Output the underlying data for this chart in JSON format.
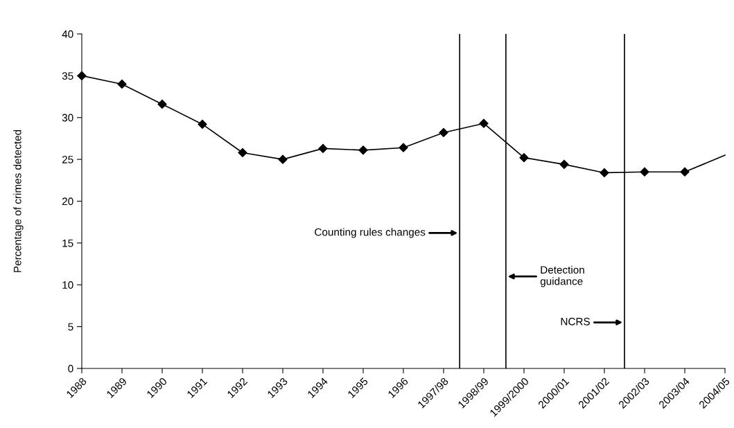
{
  "chart_data": {
    "type": "line",
    "ylabel": "Percentage of crimes detected",
    "categories": [
      "1988",
      "1989",
      "1990",
      "1991",
      "1992",
      "1993",
      "1994",
      "1995",
      "1996",
      "1997/98",
      "1998/99",
      "1999/2000",
      "2000/01",
      "2001/02",
      "2002/03",
      "2003/04",
      "2004/05"
    ],
    "series": [
      {
        "color": "#000000",
        "values": [
          35,
          34,
          31.6,
          29.2,
          25.8,
          25.0,
          26.3,
          26.1,
          26.4,
          28.2,
          29.3,
          25.2,
          24.4,
          23.4,
          23.5,
          23.5,
          25.5
        ]
      }
    ],
    "ylim": [
      0,
      40
    ],
    "yticks": [
      0,
      5,
      10,
      15,
      20,
      25,
      30,
      35,
      40
    ],
    "annotations": [
      "Counting rules changes",
      "Detection\nguidance",
      "NCRS"
    ],
    "marker": "diamond",
    "line_style": "solid",
    "grid": false,
    "legend": false
  }
}
